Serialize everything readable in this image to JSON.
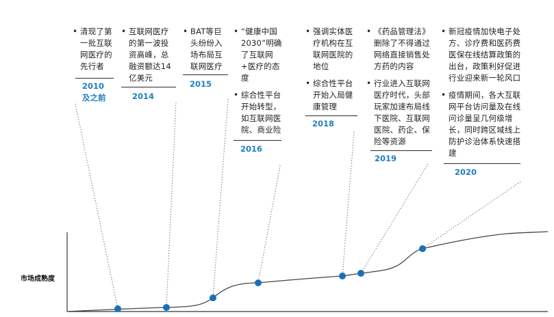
{
  "axis": {
    "y_label": "市场成熟度"
  },
  "milestones": [
    {
      "year_lines": [
        "2010",
        "及之前"
      ],
      "items": [
        "清现了第一批互联网医疗的先行者"
      ]
    },
    {
      "year_lines": [
        "2014"
      ],
      "items": [
        "互联网医疗的第一波投资高峰，总融资额达14亿美元"
      ]
    },
    {
      "year_lines": [
        "2015"
      ],
      "items": [
        "BAT等巨头纷纷入场布局互联网医疗"
      ]
    },
    {
      "year_lines": [
        "2016"
      ],
      "items": [
        "“健康中国2030”明确了互联网+医疗的态度",
        "综合性平台开始转型，如互联网医院、商业险"
      ]
    },
    {
      "year_lines": [
        "2018"
      ],
      "items": [
        "强调实体医疗机构在互联网医院的地位",
        "综合性平台开始入局健康管理"
      ]
    },
    {
      "year_lines": [
        "2019"
      ],
      "items": [
        "《药品管理法》删除了不得通过网络直接销售处方药的内容",
        "行业进入互联网医疗时代，头部玩家加速布局线下医院、互联网医院、药企、保险等资源"
      ]
    },
    {
      "year_lines": [
        "2020"
      ],
      "items": [
        "新冠疫情加快电子处方、诊疗费和医药费医保在线结算政策的出台，政策利好促进行业迎来新一轮风口",
        "疫情期间，各大互联网平台访问量及在线问诊量呈几何级增长，同时跨区域线上防护诊治体系快速搭建"
      ]
    }
  ],
  "colors": {
    "accent": "#1f7fc0",
    "dot": "#1a70b8",
    "curve": "#444444",
    "axis": "#333333"
  }
}
